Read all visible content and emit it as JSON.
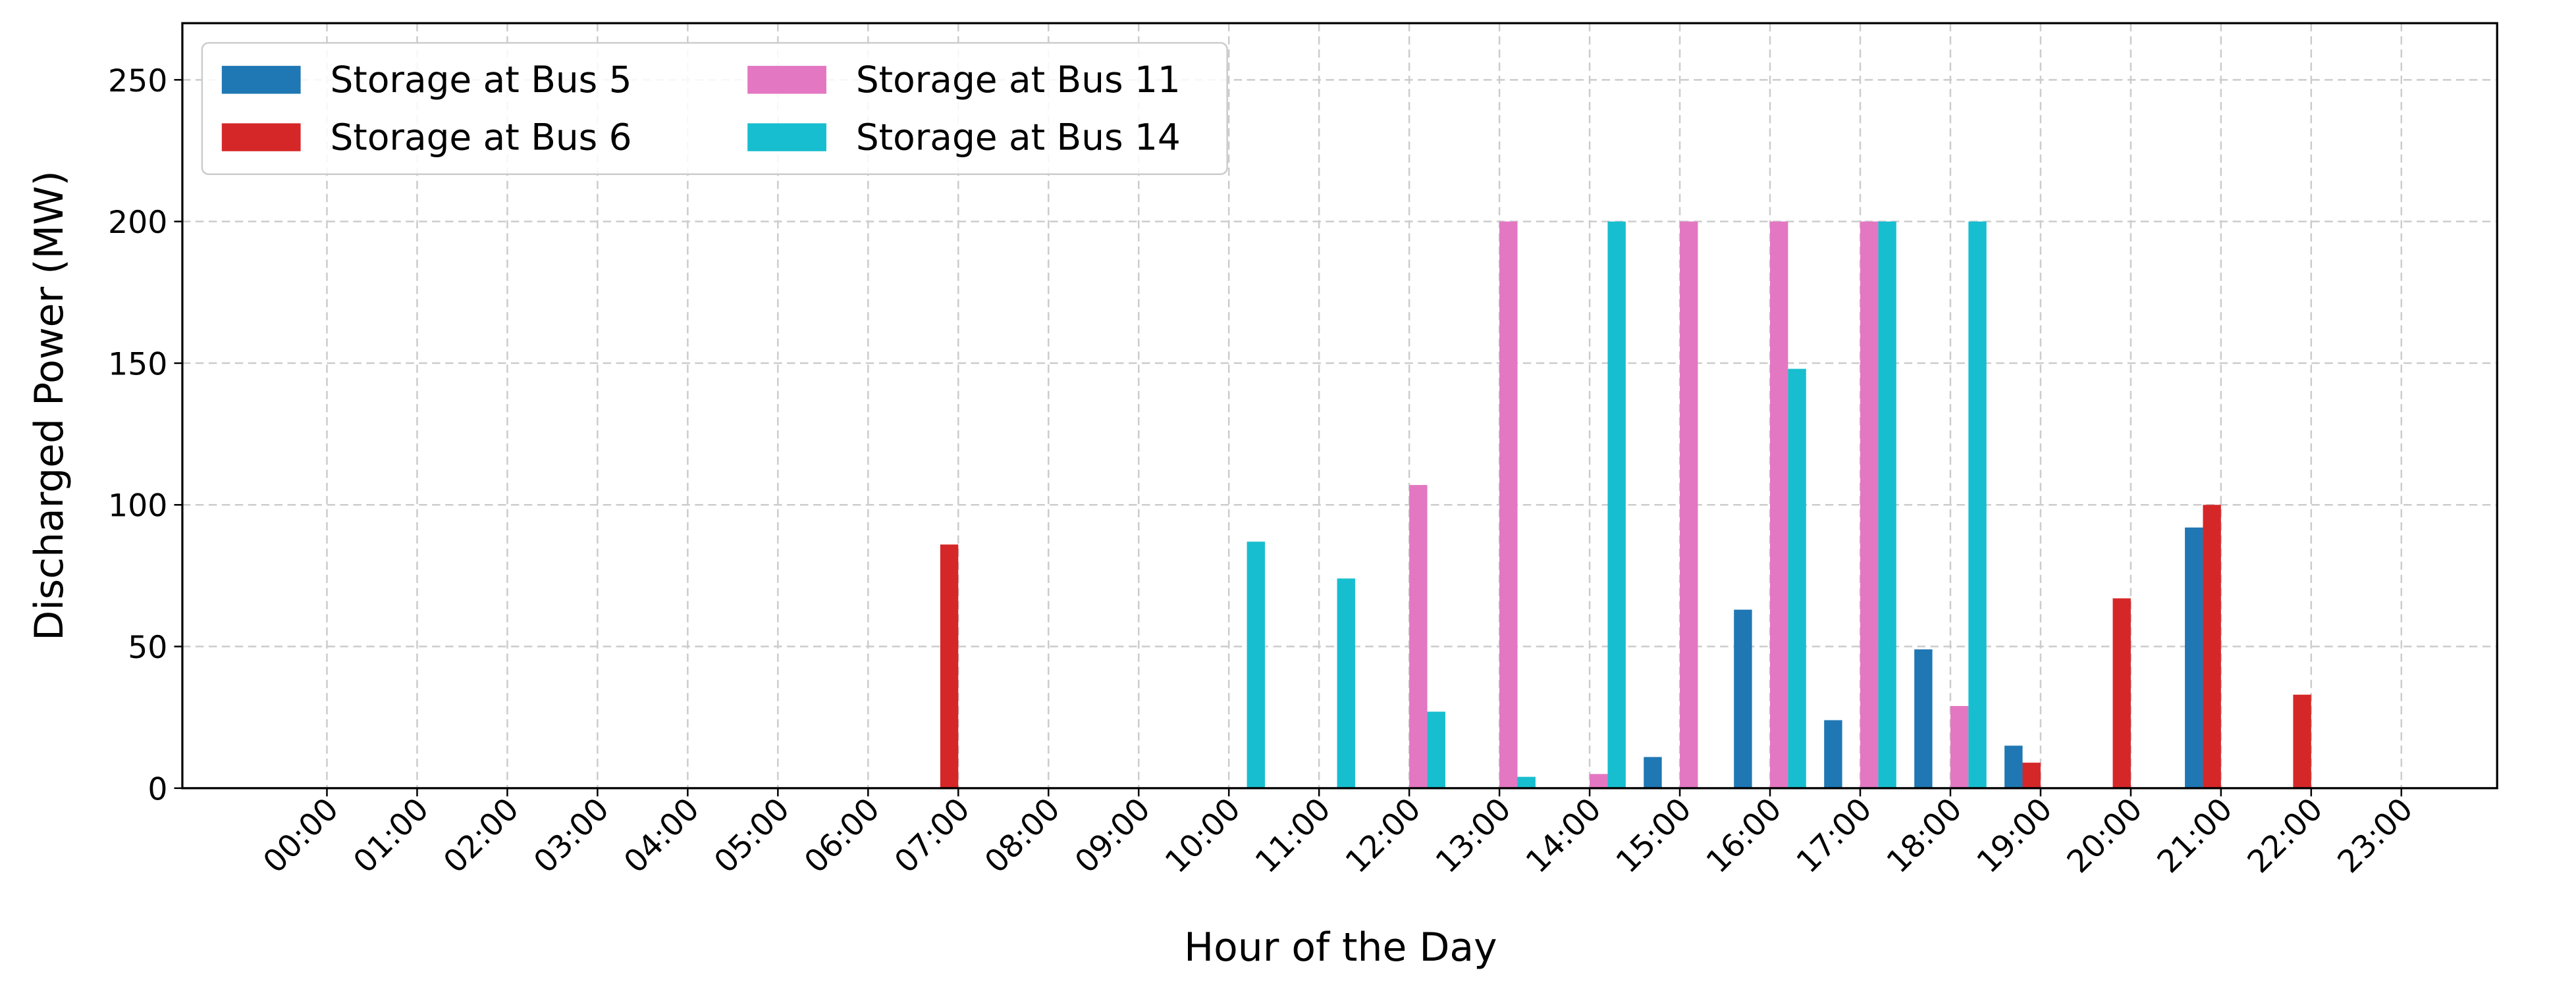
{
  "chart_data": {
    "type": "bar",
    "xlabel": "Hour of the Day",
    "ylabel": "Discharged Power (MW)",
    "categories": [
      "00:00",
      "01:00",
      "02:00",
      "03:00",
      "04:00",
      "05:00",
      "06:00",
      "07:00",
      "08:00",
      "09:00",
      "10:00",
      "11:00",
      "12:00",
      "13:00",
      "14:00",
      "15:00",
      "16:00",
      "17:00",
      "18:00",
      "19:00",
      "20:00",
      "21:00",
      "22:00",
      "23:00"
    ],
    "series": [
      {
        "name": "Storage at Bus 5",
        "color": "#1f77b4",
        "values": [
          0,
          0,
          0,
          0,
          0,
          0,
          0,
          0,
          0,
          0,
          0,
          0,
          0,
          0,
          0,
          11,
          63,
          24,
          49,
          15,
          0,
          92,
          0,
          0
        ]
      },
      {
        "name": "Storage at Bus 6",
        "color": "#d62728",
        "values": [
          0,
          0,
          0,
          0,
          0,
          0,
          0,
          86,
          0,
          0,
          0,
          0,
          0,
          0,
          0,
          0,
          0,
          0,
          0,
          9,
          67,
          100,
          33,
          0
        ]
      },
      {
        "name": "Storage at Bus 11",
        "color": "#e377c2",
        "values": [
          0,
          0,
          0,
          0,
          0,
          0,
          0,
          0,
          0,
          0,
          0,
          0,
          107,
          200,
          5,
          200,
          200,
          200,
          29,
          0,
          0,
          0,
          0,
          0
        ]
      },
      {
        "name": "Storage at Bus 14",
        "color": "#17becf",
        "values": [
          0,
          0,
          0,
          0,
          0,
          0,
          0,
          0,
          0,
          0,
          87,
          74,
          27,
          4,
          200,
          0,
          148,
          200,
          200,
          0,
          0,
          0,
          0,
          0
        ]
      }
    ],
    "ylim": [
      0,
      270
    ],
    "yticks": [
      0,
      50,
      100,
      150,
      200,
      250
    ],
    "grid": true,
    "legend": "upper-left"
  }
}
